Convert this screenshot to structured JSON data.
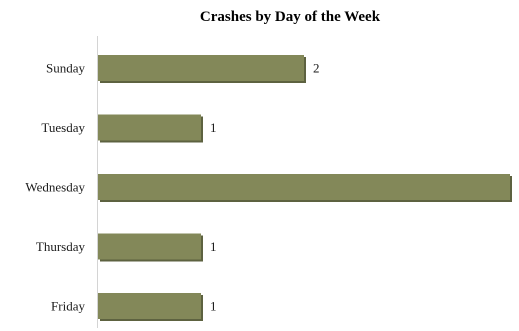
{
  "chart_data": {
    "type": "bar",
    "orientation": "horizontal",
    "title": "Crashes by Day of the Week",
    "xlabel": "",
    "ylabel": "",
    "categories": [
      "Sunday",
      "Tuesday",
      "Wednesday",
      "Thursday",
      "Friday"
    ],
    "values": [
      2,
      1,
      4,
      1,
      1
    ],
    "xlim": [
      0,
      4
    ],
    "grid": false,
    "legend": "none",
    "bar_color": "#838859",
    "bar_shadow_color": "#5d6240",
    "axis_color": "#d4d4d4"
  }
}
